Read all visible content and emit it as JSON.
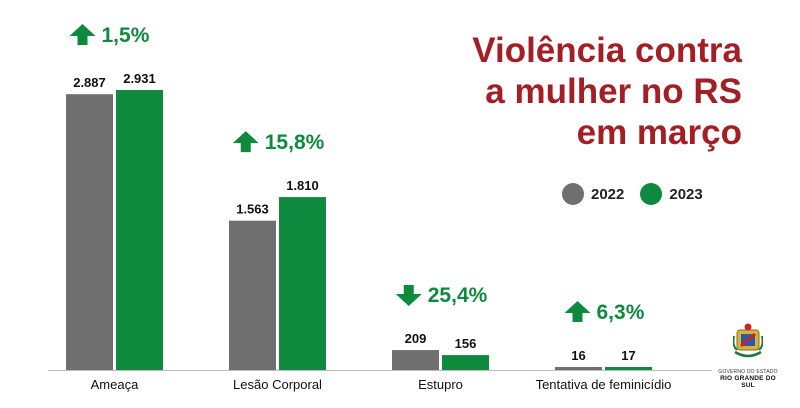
{
  "chart_data": {
    "type": "bar",
    "title": "Violência contra a mulher no RS em março",
    "title_lines": [
      "Violência contra",
      "a mulher no RS",
      "em março"
    ],
    "categories": [
      "Ameaça",
      "Lesão Corporal",
      "Estupro",
      "Tentativa de feminicídio"
    ],
    "series": [
      {
        "name": "2022",
        "color": "#6f6f6f",
        "values": [
          2887,
          1563,
          209,
          16
        ],
        "labels": [
          "2.887",
          "1.563",
          "209",
          "16"
        ]
      },
      {
        "name": "2023",
        "color": "#0e8a3e",
        "values": [
          2931,
          1810,
          156,
          17
        ],
        "labels": [
          "2.931",
          "1.810",
          "156",
          "17"
        ]
      }
    ],
    "changes": [
      {
        "text": "1,5%",
        "direction": "up"
      },
      {
        "text": "15,8%",
        "direction": "up"
      },
      {
        "text": "25,4%",
        "direction": "down"
      },
      {
        "text": "6,3%",
        "direction": "up"
      }
    ],
    "ylim": [
      0,
      3000
    ],
    "legend_position": "right",
    "grid": false,
    "xlabel": "",
    "ylabel": ""
  },
  "logo": {
    "line1": "GOVERNO DO ESTADO",
    "line2": "RIO GRANDE DO SUL",
    "icon": "state-coat-of-arms-icon"
  },
  "colors": {
    "title": "#a31f25",
    "change": "#0e8a3e"
  }
}
